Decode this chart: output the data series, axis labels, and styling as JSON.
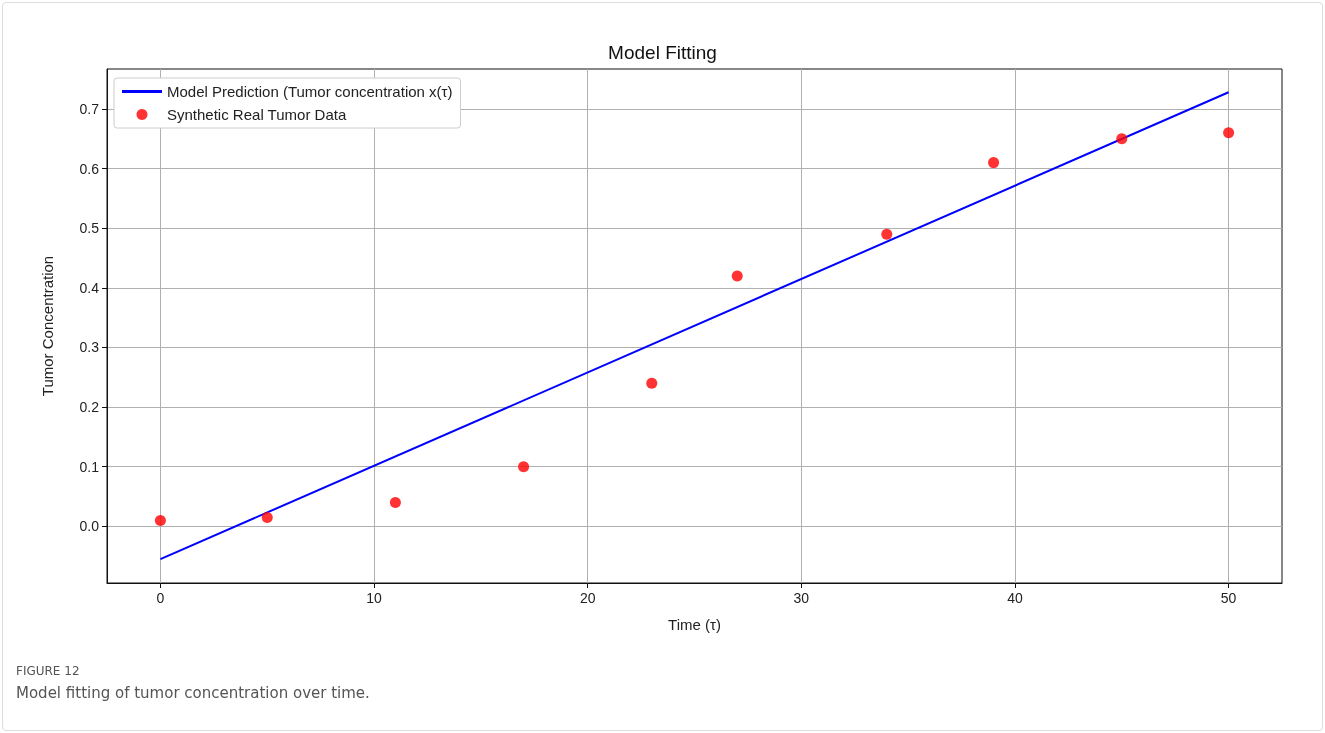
{
  "chart_data": {
    "type": "scatter",
    "title": "Model Fitting",
    "xlabel": "Time (τ)",
    "ylabel": "Tumor Concentration",
    "annotations": [
      "FIGURE 12",
      "Model fitting of tumor concentration over time."
    ],
    "series": [
      {
        "name": "Model Prediction (Tumor concentration x(τ)",
        "type": "line",
        "color": "#0000ff",
        "marker": "none",
        "line_style": "solid",
        "x": [
          0,
          50
        ],
        "values": [
          -0.055,
          0.728
        ]
      },
      {
        "name": "Synthetic Real Tumor Data",
        "color": "#ff0000",
        "marker": "circle",
        "x": [
          0,
          5,
          11,
          17,
          23,
          27,
          34,
          39,
          45,
          50
        ],
        "values": [
          0.01,
          0.015,
          0.04,
          0.1,
          0.24,
          0.42,
          0.49,
          0.61,
          0.65,
          0.66
        ]
      }
    ],
    "xlim": [
      -2.5,
      52.5
    ],
    "xticks": [
      0,
      10,
      20,
      30,
      40,
      50
    ],
    "ylim": [
      -0.095,
      0.767
    ],
    "yticks": [
      {
        "value": 0,
        "label": "0.0"
      },
      0.1,
      0.2,
      0.3,
      0.4,
      0.5,
      0.6,
      0.7
    ],
    "grid": true,
    "legend": "top left"
  }
}
